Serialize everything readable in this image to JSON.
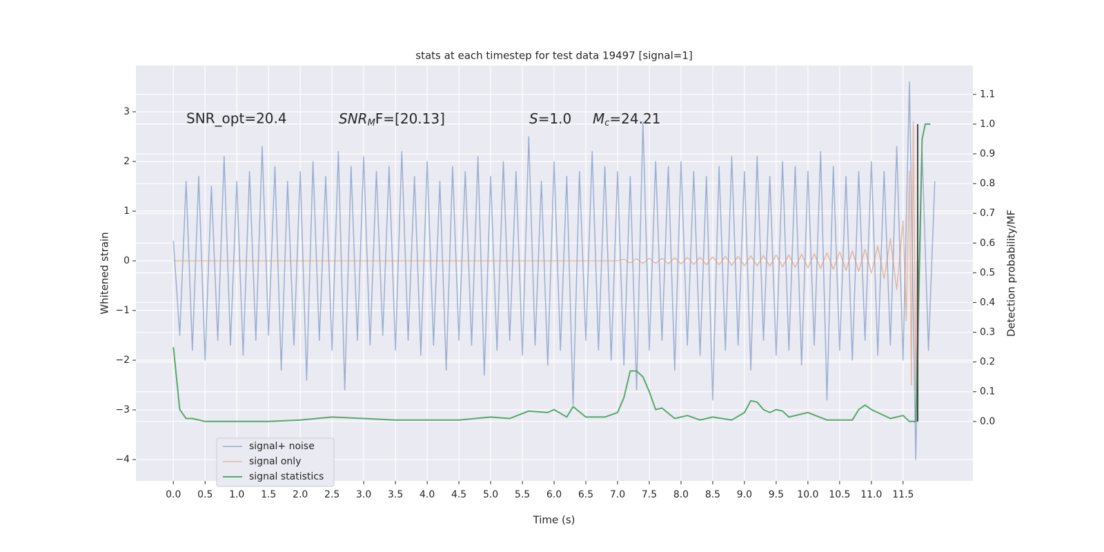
{
  "chart_data": {
    "type": "line",
    "title": "stats at each timestep for test data 19497 [signal=1]",
    "xlabel": "Time (s)",
    "ylabel": "Whitened strain",
    "y2label": "Detection probability/MF",
    "annotations": [
      {
        "text": "SNR_opt=20.4"
      },
      {
        "base": "SNR",
        "sub": "M",
        "rest": "F=[20.13]"
      },
      {
        "base": "S",
        "rest": "=1.0"
      },
      {
        "base": "M",
        "sub": "c",
        "rest": "=24.21"
      }
    ],
    "xlim": [
      -0.59,
      12.6
    ],
    "ylim": [
      -4.43,
      3.93
    ],
    "y2lim": [
      -0.2,
      1.197
    ],
    "xticks": [
      {
        "value": 0,
        "label": "0.0"
      },
      0.5,
      {
        "value": 1,
        "label": "1.0"
      },
      1.5,
      {
        "value": 2,
        "label": "2.0"
      },
      2.5,
      {
        "value": 3,
        "label": "3.0"
      },
      3.5,
      {
        "value": 4,
        "label": "4.0"
      },
      4.5,
      {
        "value": 5,
        "label": "5.0"
      },
      5.5,
      {
        "value": 6,
        "label": "6.0"
      },
      6.5,
      {
        "value": 7,
        "label": "7.0"
      },
      7.5,
      {
        "value": 8,
        "label": "8.0"
      },
      8.5,
      {
        "value": 9,
        "label": "9.0"
      },
      9.5,
      {
        "value": 10,
        "label": "10.0"
      },
      10.5,
      {
        "value": 11,
        "label": "11.0"
      },
      11.5
    ],
    "yticks": [
      {
        "value": -4,
        "label": "−4"
      },
      {
        "value": -3,
        "label": "−3"
      },
      {
        "value": -2,
        "label": "−2"
      },
      {
        "value": -1,
        "label": "−1"
      },
      0,
      1,
      2,
      3
    ],
    "y2ticks": [
      {
        "value": 0,
        "label": "0.0"
      },
      0.1,
      0.2,
      0.3,
      0.4,
      0.5,
      0.6,
      0.7,
      0.8,
      0.9,
      {
        "value": 1,
        "label": "1.0"
      },
      1.1
    ],
    "grid": true,
    "legend": "lower left",
    "vline": {
      "x": 11.73,
      "color": "#444444"
    },
    "series": [
      {
        "name": "signal+ noise",
        "color": "#4c72b0",
        "x": [
          0,
          0.1,
          0.2,
          0.3,
          0.4,
          0.5,
          0.6,
          0.7,
          0.8,
          0.9,
          1,
          1.1,
          1.2,
          1.3,
          1.4,
          1.5,
          1.6,
          1.7,
          1.8,
          1.9,
          2,
          2.1,
          2.2,
          2.3,
          2.4,
          2.5,
          2.6,
          2.7,
          2.8,
          2.9,
          3,
          3.1,
          3.2,
          3.3,
          3.4,
          3.5,
          3.6,
          3.7,
          3.8,
          3.9,
          4,
          4.1,
          4.2,
          4.3,
          4.4,
          4.5,
          4.6,
          4.7,
          4.8,
          4.9,
          5,
          5.1,
          5.2,
          5.3,
          5.4,
          5.5,
          5.6,
          5.7,
          5.8,
          5.9,
          6,
          6.1,
          6.2,
          6.3,
          6.4,
          6.5,
          6.6,
          6.7,
          6.8,
          6.9,
          7,
          7.1,
          7.2,
          7.3,
          7.4,
          7.5,
          7.6,
          7.7,
          7.8,
          7.9,
          8,
          8.1,
          8.2,
          8.3,
          8.4,
          8.5,
          8.6,
          8.7,
          8.8,
          8.9,
          9,
          9.1,
          9.2,
          9.3,
          9.4,
          9.5,
          9.6,
          9.7,
          9.8,
          9.9,
          10,
          10.1,
          10.2,
          10.3,
          10.4,
          10.5,
          10.6,
          10.7,
          10.8,
          10.9,
          11,
          11.1,
          11.2,
          11.3,
          11.4,
          11.5,
          11.6,
          11.7,
          11.8,
          11.9,
          12
        ],
        "values": [
          0.4,
          -1.5,
          1.6,
          -1.8,
          1.7,
          -2.0,
          1.5,
          -1.6,
          2.1,
          -1.7,
          1.6,
          -1.9,
          1.8,
          -1.6,
          2.3,
          -1.5,
          1.9,
          -2.2,
          1.6,
          -1.7,
          1.8,
          -2.4,
          2.0,
          -1.6,
          1.7,
          -1.8,
          2.2,
          -2.6,
          1.9,
          -1.6,
          2.1,
          -1.7,
          1.8,
          -1.5,
          1.9,
          -1.8,
          2.2,
          -1.6,
          1.7,
          -1.9,
          2.0,
          -1.7,
          1.6,
          -2.2,
          1.9,
          -1.6,
          1.8,
          -1.7,
          2.1,
          -2.3,
          1.7,
          -1.8,
          2.0,
          -1.6,
          1.8,
          -1.9,
          2.5,
          -1.7,
          1.6,
          -2.1,
          2.0,
          -1.8,
          1.7,
          -2.9,
          1.8,
          -1.6,
          2.2,
          -1.8,
          1.9,
          -2.0,
          1.8,
          -2.1,
          1.7,
          -2.6,
          2.8,
          -1.8,
          2.0,
          -1.6,
          1.9,
          -2.2,
          2.0,
          -1.7,
          1.8,
          -1.9,
          1.7,
          -2.8,
          1.9,
          -1.8,
          2.1,
          -1.7,
          1.8,
          -2.2,
          2.1,
          -1.6,
          1.7,
          -1.9,
          2.0,
          -1.8,
          1.9,
          -2.1,
          1.8,
          -1.7,
          2.2,
          -2.8,
          1.9,
          -1.8,
          1.7,
          -2.0,
          1.8,
          -1.6,
          2.0,
          -1.9,
          1.8,
          -1.7,
          2.3,
          -2.0,
          3.6,
          -4.0,
          2.2,
          -1.8,
          1.6
        ]
      },
      {
        "name": "signal only",
        "color": "#dd8452",
        "x": [
          0,
          7,
          7.1,
          7.2,
          7.3,
          7.4,
          7.5,
          7.6,
          7.7,
          7.8,
          7.9,
          8,
          8.1,
          8.2,
          8.3,
          8.4,
          8.5,
          8.6,
          8.7,
          8.8,
          8.9,
          9,
          9.1,
          9.2,
          9.3,
          9.4,
          9.5,
          9.6,
          9.7,
          9.8,
          9.9,
          10,
          10.1,
          10.2,
          10.3,
          10.4,
          10.5,
          10.6,
          10.7,
          10.8,
          10.9,
          11,
          11.1,
          11.2,
          11.3,
          11.4,
          11.5,
          11.55,
          11.6,
          11.63,
          11.66,
          11.7,
          11.72
        ],
        "values": [
          0,
          0,
          0.03,
          -0.04,
          0.04,
          -0.05,
          0.05,
          -0.05,
          0.05,
          -0.06,
          0.06,
          -0.06,
          0.07,
          -0.07,
          0.07,
          -0.08,
          0.08,
          -0.08,
          0.09,
          -0.09,
          0.09,
          -0.1,
          0.1,
          -0.1,
          0.11,
          -0.11,
          0.12,
          -0.12,
          0.12,
          -0.13,
          0.13,
          -0.14,
          0.14,
          -0.15,
          0.16,
          -0.17,
          0.18,
          -0.19,
          0.2,
          -0.21,
          0.23,
          -0.25,
          0.3,
          -0.36,
          0.45,
          -0.58,
          0.8,
          -1.2,
          1.8,
          -2.5,
          2.8,
          -2.6,
          0
        ]
      },
      {
        "name": "signal statistics",
        "color": "#55a868",
        "axis": "y2",
        "x": [
          0,
          0.1,
          0.2,
          0.3,
          0.5,
          1,
          1.5,
          2,
          2.5,
          3,
          3.5,
          4,
          4.5,
          5,
          5.3,
          5.6,
          5.9,
          6.0,
          6.2,
          6.3,
          6.5,
          6.8,
          7.0,
          7.1,
          7.2,
          7.3,
          7.4,
          7.5,
          7.6,
          7.7,
          7.9,
          8.1,
          8.3,
          8.5,
          8.8,
          9.0,
          9.1,
          9.2,
          9.3,
          9.4,
          9.5,
          9.6,
          9.7,
          10.0,
          10.3,
          10.7,
          10.8,
          10.9,
          11.0,
          11.1,
          11.3,
          11.5,
          11.6,
          11.7,
          11.8,
          11.85,
          11.93
        ],
        "values": [
          0.25,
          0.04,
          0.01,
          0.01,
          0,
          0,
          0,
          0.005,
          0.015,
          0.01,
          0.005,
          0.005,
          0.005,
          0.015,
          0.01,
          0.035,
          0.03,
          0.04,
          0.015,
          0.05,
          0.015,
          0.015,
          0.03,
          0.08,
          0.17,
          0.17,
          0.15,
          0.1,
          0.04,
          0.045,
          0.01,
          0.02,
          0.005,
          0.015,
          0.005,
          0.03,
          0.07,
          0.065,
          0.04,
          0.03,
          0.04,
          0.035,
          0.015,
          0.03,
          0.005,
          0.005,
          0.04,
          0.055,
          0.04,
          0.03,
          0.01,
          0.02,
          0,
          0,
          0.95,
          1,
          1
        ]
      }
    ]
  }
}
